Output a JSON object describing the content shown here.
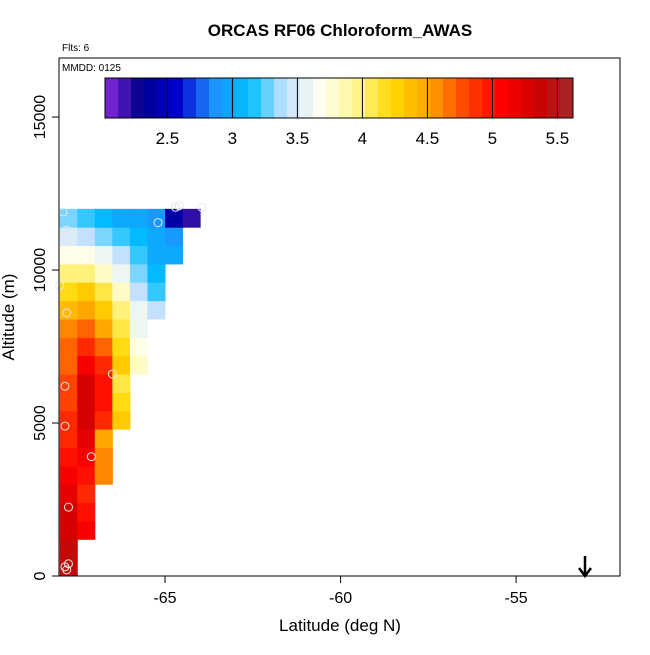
{
  "chart_data": {
    "type": "heatmap",
    "title": "ORCAS RF06 Chloroform_AWAS",
    "annotations": [
      "Flts: 6",
      "MMDD: 0125"
    ],
    "x_label": "Latitude (deg N)",
    "y_label": "Altitude (m)",
    "xlim": [
      -68.02,
      -52.04
    ],
    "xticks": [
      -65,
      -60,
      -55
    ],
    "ylim": [
      0,
      16930
    ],
    "yticks": [
      0,
      5000,
      10000,
      15000
    ],
    "zlim": [
      2.02,
      5.62
    ],
    "zticks": [
      2.5,
      3.0,
      3.5,
      4.0,
      4.5,
      5.0,
      5.5
    ],
    "colors": [
      "#8a2be2",
      "#00008b",
      "#0000cd",
      "#1e90ff",
      "#00bfff",
      "#c6e2ff",
      "#fffff0",
      "#fff68f",
      "#ffd700",
      "#ffa500",
      "#ff4500",
      "#ff0000",
      "#cd0000",
      "#a52a2a"
    ],
    "x": [
      -67.75,
      -67.25,
      -66.75,
      -66.25,
      -65.75,
      -65.25,
      -64.75,
      -64.25
    ],
    "y": [
      300,
      900,
      1500,
      2100,
      2700,
      3300,
      3900,
      4500,
      5100,
      5700,
      6300,
      6900,
      7500,
      8100,
      8700,
      9300,
      9900,
      10500,
      11100,
      11700
    ],
    "z": [
      [
        5.4,
        null,
        null,
        null,
        null,
        null,
        null,
        null
      ],
      [
        5.4,
        null,
        null,
        null,
        null,
        null,
        null,
        null
      ],
      [
        5.3,
        5.1,
        null,
        null,
        null,
        null,
        null,
        null
      ],
      [
        5.3,
        5.0,
        null,
        null,
        null,
        null,
        null,
        null
      ],
      [
        5.2,
        4.9,
        null,
        null,
        null,
        null,
        null,
        null
      ],
      [
        5.1,
        5.0,
        4.6,
        null,
        null,
        null,
        null,
        null
      ],
      [
        5.0,
        5.1,
        4.6,
        null,
        null,
        null,
        null,
        null
      ],
      [
        4.9,
        5.2,
        4.5,
        null,
        null,
        null,
        null,
        null
      ],
      [
        4.9,
        5.3,
        4.9,
        4.3,
        null,
        null,
        null,
        null
      ],
      [
        4.8,
        5.3,
        5.0,
        4.2,
        null,
        null,
        null,
        null
      ],
      [
        4.8,
        5.3,
        5.0,
        4.1,
        null,
        null,
        null,
        null
      ],
      [
        4.7,
        5.1,
        4.9,
        4.3,
        3.8,
        null,
        null,
        null
      ],
      [
        4.7,
        4.9,
        4.7,
        4.2,
        3.7,
        null,
        null,
        null
      ],
      [
        4.6,
        4.7,
        4.5,
        4.1,
        3.6,
        null,
        null,
        null
      ],
      [
        4.4,
        4.5,
        4.3,
        4.0,
        3.6,
        3.4,
        null,
        null
      ],
      [
        4.2,
        4.3,
        4.1,
        3.8,
        3.4,
        3.2,
        null,
        null
      ],
      [
        4.0,
        4.0,
        3.8,
        3.6,
        3.3,
        3.1,
        null,
        null
      ],
      [
        3.7,
        3.7,
        3.6,
        3.4,
        3.2,
        3.0,
        3.0,
        null
      ],
      [
        3.5,
        3.4,
        3.3,
        3.2,
        3.1,
        3.0,
        2.9,
        null
      ],
      [
        3.3,
        3.2,
        3.1,
        3.0,
        3.0,
        2.9,
        2.4,
        2.2
      ]
    ],
    "points": {
      "x": [
        -67.9,
        -67.8,
        -68.0,
        -67.8,
        -67.85,
        -67.85,
        -67.1,
        -67.75,
        -67.75,
        -67.85,
        -67.8,
        -66.5,
        -65.2,
        -64.7,
        -64.6,
        -63.95
      ],
      "y": [
        11900,
        11300,
        9500,
        8600,
        6200,
        4900,
        3900,
        2250,
        400,
        300,
        200,
        6600,
        11550,
        12050,
        12100,
        12050
      ]
    }
  }
}
